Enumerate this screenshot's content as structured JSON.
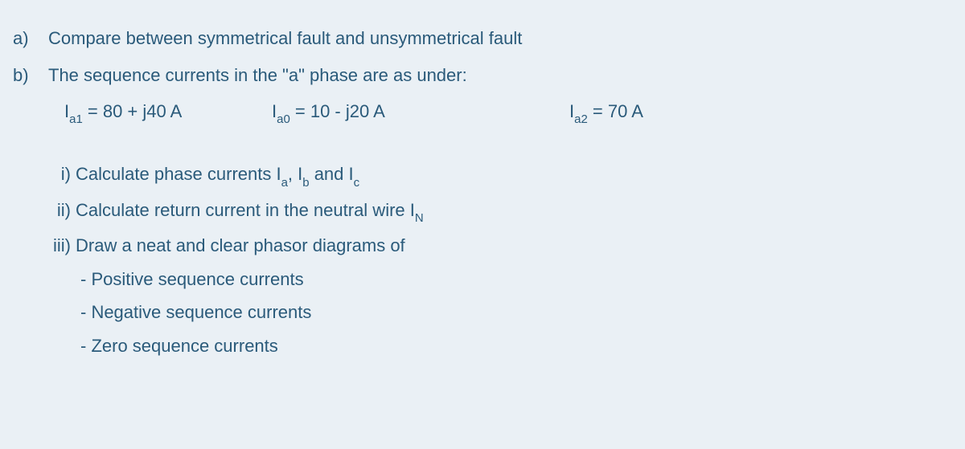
{
  "colors": {
    "background": "#eaf0f5",
    "text": "#2a5a7a"
  },
  "typography": {
    "family": "Segoe UI Light",
    "size_pt": 22,
    "weight": 300
  },
  "items": {
    "a": {
      "marker": "a)",
      "text": "Compare between symmetrical fault and unsymmetrical fault"
    },
    "b": {
      "marker": "b)",
      "intro": "The sequence currents in the \"a\" phase are as under:",
      "eq1": {
        "var": "I",
        "sub": "a1",
        "rhs": " = 80 + j40 A"
      },
      "eq2": {
        "var": "I",
        "sub": "a0",
        "rhs": " = 10 - j20 A"
      },
      "eq3": {
        "var": "I",
        "sub": "a2",
        "rhs": " = 70 A"
      },
      "tasks": {
        "i": {
          "marker": "i)",
          "pre": "Calculate phase currents I",
          "s1": "a",
          "mid1": ", I",
          "s2": "b",
          "mid2": " and I",
          "s3": "c"
        },
        "ii": {
          "marker": "ii)",
          "pre": "Calculate return current in the neutral wire I",
          "s1": "N"
        },
        "iii": {
          "marker": "iii)",
          "text": "Draw a neat and clear phasor diagrams of"
        }
      },
      "bullets": {
        "b1": "- Positive sequence currents",
        "b2": "- Negative sequence currents",
        "b3": "- Zero sequence currents"
      }
    }
  }
}
